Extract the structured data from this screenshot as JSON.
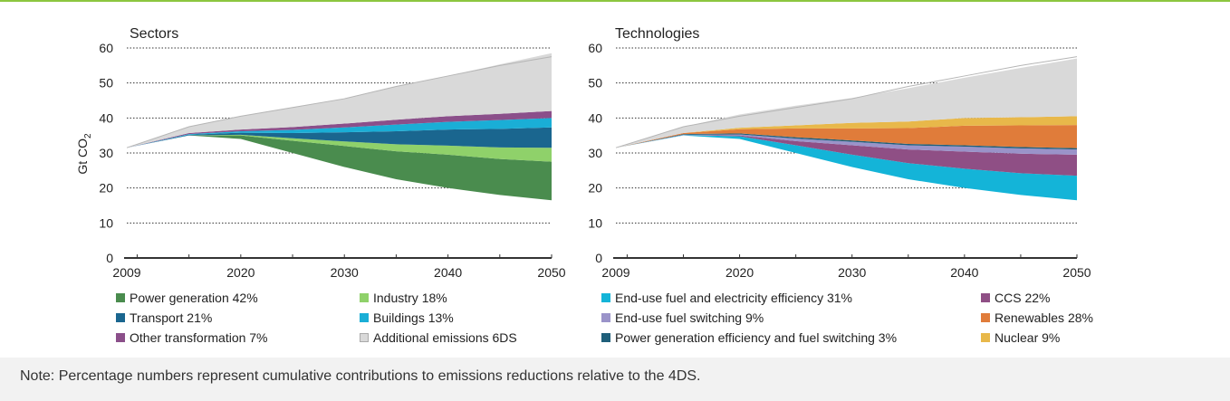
{
  "note": "Note: Percentage numbers represent cumulative contributions to emissions reductions relative to the 4DS.",
  "colors": {
    "top_line": "#8cc63f",
    "power_generation": "#4a8c4e",
    "industry": "#8fd16a",
    "transport": "#1a668f",
    "buildings": "#1aaed6",
    "other_transformation": "#8b4f8a",
    "additional": "#d9d9d9",
    "end_use_efficiency": "#14b4d8",
    "ccs": "#8f4f85",
    "end_use_switching": "#9a93c9",
    "renewables": "#e07c3a",
    "power_gen_eff_switch": "#1f5f7a",
    "nuclear": "#e8b84a"
  },
  "chart_data": [
    {
      "type": "area",
      "title": "Sectors",
      "ylabel": "Gt CO",
      "ylabel_sub": "2",
      "ylim": [
        0,
        60
      ],
      "yticks": [
        "0",
        "10",
        "20",
        "30",
        "40",
        "50",
        "60"
      ],
      "xlim": [
        2009,
        2050
      ],
      "xticks": [
        "2009",
        "2020",
        "2030",
        "2040",
        "2050"
      ],
      "x": [
        2009,
        2015,
        2020,
        2025,
        2030,
        2035,
        2040,
        2045,
        2050
      ],
      "baseline_6DS": [
        31.5,
        37.5,
        40.5,
        43.0,
        45.5,
        49.0,
        52.0,
        55.0,
        57.5
      ],
      "bottom_line": [
        31.5,
        35.0,
        34.0,
        30.0,
        26.0,
        22.5,
        20.0,
        18.0,
        16.5
      ],
      "series": [
        {
          "name": "Power generation",
          "legend": "Power generation  42%",
          "color_key": "power_generation",
          "values": [
            0.0,
            0.0,
            1.0,
            3.5,
            6.0,
            8.0,
            9.5,
            10.3,
            11.0
          ]
        },
        {
          "name": "Industry",
          "legend": "Industry  18%",
          "color_key": "industry",
          "values": [
            0.0,
            0.0,
            0.2,
            0.7,
            1.3,
            2.0,
            2.6,
            3.3,
            4.0
          ]
        },
        {
          "name": "Transport",
          "legend": "Transport  21%",
          "color_key": "transport",
          "values": [
            0.0,
            0.2,
            0.6,
            1.5,
            2.6,
            3.7,
            4.6,
            5.3,
            5.8
          ]
        },
        {
          "name": "Buildings",
          "legend": "Buildings 13%",
          "color_key": "buildings",
          "values": [
            0.0,
            0.2,
            0.4,
            0.9,
            1.4,
            1.9,
            2.2,
            2.5,
            2.7
          ]
        },
        {
          "name": "Other transformation",
          "legend": "Other transformation  7%",
          "color_key": "other_transformation",
          "values": [
            0.0,
            0.3,
            0.5,
            0.8,
            1.1,
            1.4,
            1.6,
            1.8,
            2.0
          ]
        },
        {
          "name": "Additional emissions 6DS",
          "legend": "Additional emissions 6DS",
          "color_key": "additional",
          "values": [
            0.0,
            1.8,
            3.8,
            5.6,
            7.1,
            9.5,
            11.5,
            14.1,
            16.5
          ]
        }
      ]
    },
    {
      "type": "area",
      "title": "Technologies",
      "ylim": [
        0,
        60
      ],
      "yticks": [
        "0",
        "10",
        "20",
        "30",
        "40",
        "50",
        "60"
      ],
      "xlim": [
        2009,
        2050
      ],
      "xticks": [
        "2009",
        "2020",
        "2030",
        "2040",
        "2050"
      ],
      "x": [
        2009,
        2015,
        2020,
        2025,
        2030,
        2035,
        2040,
        2045,
        2050
      ],
      "baseline_6DS": [
        31.5,
        37.5,
        40.5,
        43.0,
        45.5,
        49.0,
        52.0,
        55.0,
        57.5
      ],
      "bottom_line": [
        31.5,
        35.0,
        34.0,
        30.0,
        26.0,
        22.5,
        20.0,
        18.0,
        16.5
      ],
      "series": [
        {
          "name": "End-use fuel and electricity efficiency",
          "legend": "End-use fuel and electricity efficiency 31%",
          "color_key": "end_use_efficiency",
          "values": [
            0.0,
            0.1,
            0.8,
            2.2,
            3.5,
            4.6,
            5.5,
            6.2,
            7.0
          ]
        },
        {
          "name": "CCS",
          "legend": "CCS 22%",
          "color_key": "ccs",
          "values": [
            0.0,
            0.0,
            0.2,
            1.2,
            2.7,
            3.9,
            4.9,
            5.6,
            6.0
          ]
        },
        {
          "name": "End-use fuel switching",
          "legend": "End-use fuel switching 9%",
          "color_key": "end_use_switching",
          "values": [
            0.0,
            0.1,
            0.3,
            0.7,
            1.0,
            1.2,
            1.4,
            1.5,
            1.5
          ]
        },
        {
          "name": "Power generation efficiency and fuel switching",
          "legend": "Power generation efficiency and fuel switching 3%",
          "color_key": "power_gen_eff_switch",
          "values": [
            0.0,
            0.2,
            0.3,
            0.4,
            0.4,
            0.4,
            0.4,
            0.4,
            0.4
          ]
        },
        {
          "name": "Renewables",
          "legend": "Renewables 28%",
          "color_key": "renewables",
          "values": [
            0.0,
            0.3,
            1.2,
            2.5,
            3.4,
            4.5,
            5.6,
            6.2,
            6.6
          ]
        },
        {
          "name": "Nuclear",
          "legend": "Nuclear 9%",
          "color_key": "nuclear",
          "values": [
            0.0,
            0.0,
            0.4,
            0.9,
            1.6,
            1.9,
            2.2,
            2.3,
            2.5
          ]
        },
        {
          "name": "Additional emissions 6DS",
          "legend": "",
          "color_key": "additional",
          "values": [
            0.0,
            1.8,
            3.8,
            5.6,
            7.1,
            9.5,
            11.5,
            14.1,
            16.5
          ]
        }
      ]
    }
  ]
}
